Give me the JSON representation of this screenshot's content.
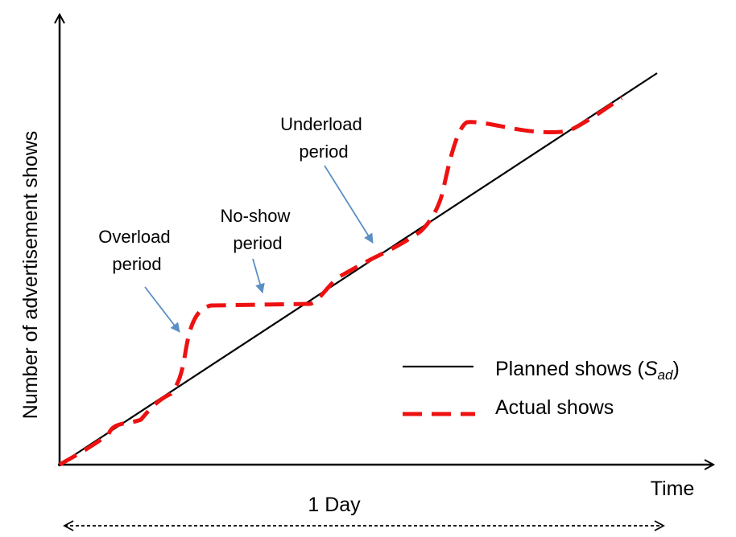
{
  "diagram": {
    "y_axis_label": "Number of advertisement shows",
    "x_axis_label": "Time",
    "span_label": "1 Day",
    "annotations": {
      "overload": [
        "Overload",
        "period"
      ],
      "noshow": [
        "No-show",
        "period"
      ],
      "underload": [
        "Underload",
        "period"
      ]
    },
    "legend": {
      "planned": {
        "text": "Planned shows (",
        "symbol": "S",
        "subscript": "ad",
        "close": ")"
      },
      "actual": "Actual shows"
    },
    "colors": {
      "planned_line": "#000000",
      "actual_line": "#ee1111",
      "annotation_arrow": "#5b8fc5",
      "axes": "#000000"
    }
  }
}
